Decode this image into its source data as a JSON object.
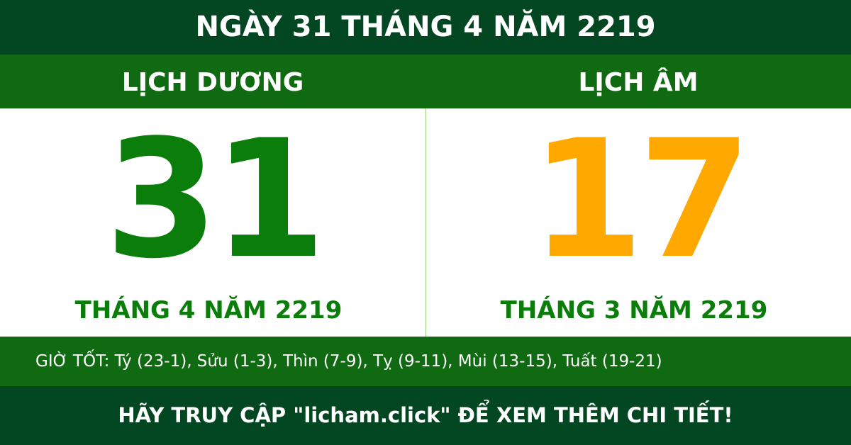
{
  "title": "NGÀY 31 THÁNG 4 NĂM 2219",
  "solar": {
    "label": "LỊCH DƯƠNG",
    "day": "31",
    "month_year": "THÁNG 4 NĂM 2219",
    "color": "#0a7d0a"
  },
  "lunar": {
    "label": "LỊCH ÂM",
    "day": "17",
    "month_year": "THÁNG 3 NĂM 2219",
    "color": "#ffa800"
  },
  "good_hours": "GIỜ TỐT: Tý (23-1), Sửu (1-3), Thìn (7-9), Tỵ (9-11), Mùi (13-15), Tuất (19-21)",
  "footer": "HÃY TRUY CẬP \"licham.click\" ĐỂ XEM THÊM CHI TIẾT!"
}
